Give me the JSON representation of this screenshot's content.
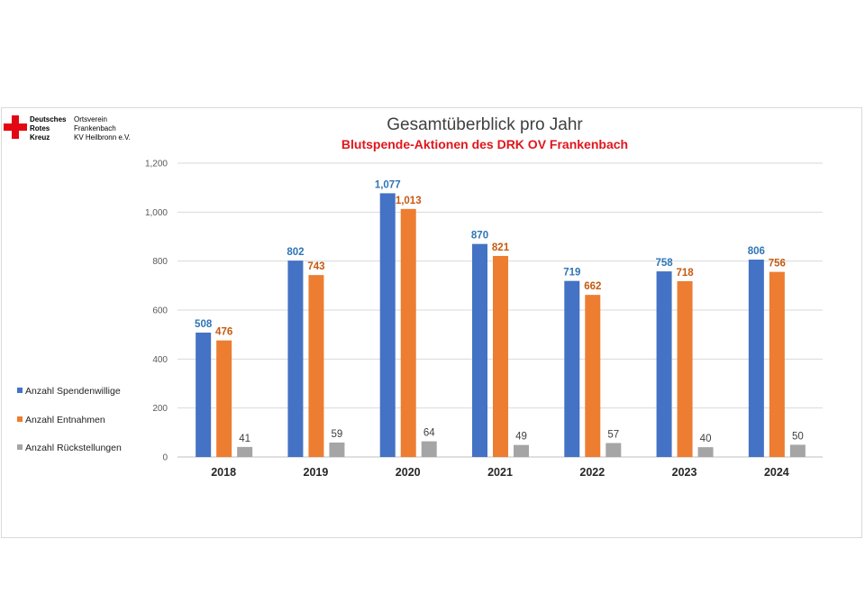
{
  "header": {
    "org_lines_left": [
      "Deutsches",
      "Rotes",
      "Kreuz"
    ],
    "org_lines_right": [
      "Ortsverein",
      "Frankenbach",
      "KV Heilbronn e.V."
    ],
    "logo_icon": "red-cross-icon"
  },
  "colors": {
    "spendenwillige": "#4472c4",
    "entnahmen": "#ed7d31",
    "rueckstellungen": "#a5a5a5",
    "label_blue": "#2e75b6",
    "label_orange": "#c55a11",
    "label_gray": "#404040",
    "subtitle_red": "#e0161b",
    "logo_red": "#e30613"
  },
  "chart_data": {
    "type": "bar",
    "title": "Gesamtüberblick pro Jahr",
    "subtitle": "Blutspende-Aktionen des DRK OV Frankenbach",
    "categories": [
      "2018",
      "2019",
      "2020",
      "2021",
      "2022",
      "2023",
      "2024"
    ],
    "series": [
      {
        "name": "Anzahl Spendenwillige",
        "values": [
          508,
          802,
          1077,
          870,
          719,
          758,
          806
        ],
        "labels": [
          "508",
          "802",
          "1,077",
          "870",
          "719",
          "758",
          "806"
        ]
      },
      {
        "name": "Anzahl Entnahmen",
        "values": [
          476,
          743,
          1013,
          821,
          662,
          718,
          756
        ],
        "labels": [
          "476",
          "743",
          "1,013",
          "821",
          "662",
          "718",
          "756"
        ]
      },
      {
        "name": "Anzahl Rückstellungen",
        "values": [
          41,
          59,
          64,
          49,
          57,
          40,
          50
        ],
        "labels": [
          "41",
          "59",
          "64",
          "49",
          "57",
          "40",
          "50"
        ]
      }
    ],
    "yticks": [
      "0",
      "200",
      "400",
      "600",
      "800",
      "1,000",
      "1,200"
    ],
    "ylim": [
      0,
      1200
    ],
    "grid": true,
    "legend_position": "left"
  }
}
